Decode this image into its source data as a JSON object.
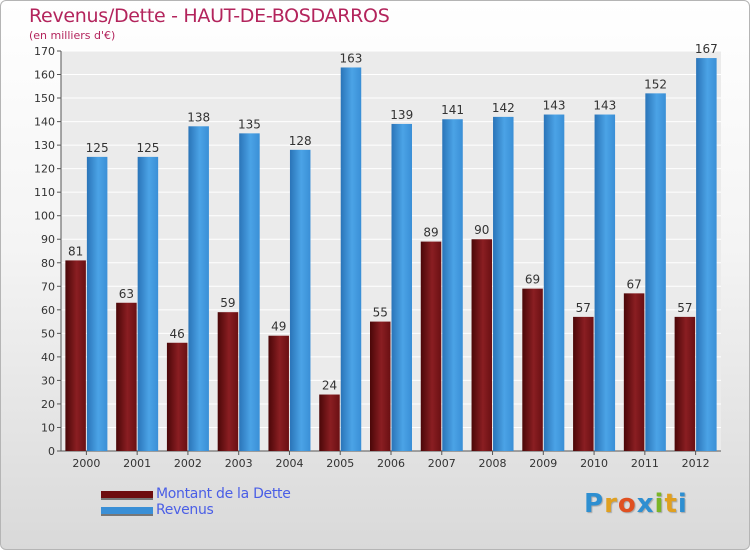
{
  "header": {
    "title": "Revenus/Dette - HAUT-DE-BOSDARROS",
    "subtitle": "(en milliers d'€)"
  },
  "legend": [
    {
      "label": "Montant de la Dette",
      "color": "#6e0d0f"
    },
    {
      "label": "Revenus",
      "color": "#3a8fd6"
    }
  ],
  "logo": {
    "text": "Proxiti",
    "colors": [
      "#2e8fd1",
      "#e0a020",
      "#e05020",
      "#2e8fd1",
      "#7bb526",
      "#e0a020",
      "#2e8fd1"
    ]
  },
  "chart_data": {
    "type": "bar",
    "categories": [
      "2000",
      "2001",
      "2002",
      "2003",
      "2004",
      "2005",
      "2006",
      "2007",
      "2008",
      "2009",
      "2010",
      "2011",
      "2012"
    ],
    "series": [
      {
        "name": "Montant de la Dette",
        "values": [
          81,
          63,
          46,
          59,
          49,
          24,
          55,
          89,
          90,
          69,
          57,
          67,
          57
        ],
        "color": "#6e0d0f"
      },
      {
        "name": "Revenus",
        "values": [
          125,
          125,
          138,
          135,
          128,
          163,
          139,
          141,
          142,
          143,
          143,
          152,
          167
        ],
        "color": "#3a8fd6"
      }
    ],
    "ylim": [
      0,
      170
    ],
    "yticks": [
      0,
      10,
      20,
      30,
      40,
      50,
      60,
      70,
      80,
      90,
      100,
      110,
      120,
      130,
      140,
      150,
      160,
      170
    ],
    "grid": true,
    "title": "Revenus/Dette - HAUT-DE-BOSDARROS",
    "ylabel": "(en milliers d'€)"
  }
}
